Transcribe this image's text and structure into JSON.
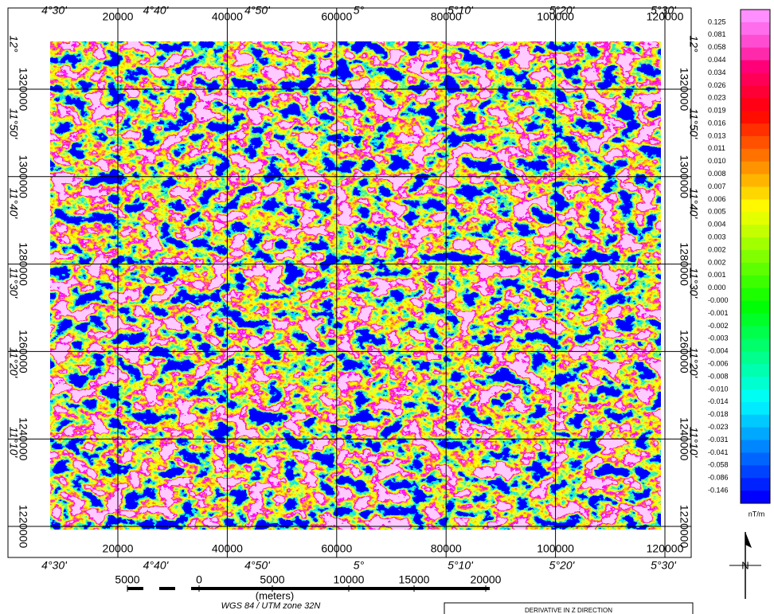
{
  "map": {
    "eastings": [
      "20000",
      "40000",
      "60000",
      "80000",
      "100000",
      "120000"
    ],
    "longitudes": [
      "4°30'",
      "4°40'",
      "4°50'",
      "5°",
      "5°10'",
      "5°20'",
      "5°30'"
    ],
    "northings": [
      "1320000",
      "1300000",
      "1280000",
      "1260000",
      "1240000",
      "1220000"
    ],
    "latitudes": [
      "12°",
      "11°50'",
      "11°40'",
      "11°30'",
      "11°20'",
      "11°10'"
    ]
  },
  "legend": {
    "labels": [
      "0.125",
      "0.081",
      "0.058",
      "0.044",
      "0.034",
      "0.026",
      "0.023",
      "0.019",
      "0.016",
      "0.013",
      "0.011",
      "0.010",
      "0.008",
      "0.007",
      "0.006",
      "0.005",
      "0.004",
      "0.003",
      "0.002",
      "0.002",
      "0.001",
      "0.000",
      "-0.000",
      "-0.001",
      "-0.002",
      "-0.003",
      "-0.004",
      "-0.006",
      "-0.008",
      "-0.010",
      "-0.014",
      "-0.018",
      "-0.023",
      "-0.031",
      "-0.041",
      "-0.058",
      "-0.086",
      "-0.146"
    ],
    "unit": "nT/m"
  },
  "scale_bar": {
    "labels": [
      "5000",
      "0",
      "5000",
      "10000",
      "15000",
      "20000"
    ],
    "unit": "(meters)",
    "projection": "WGS 84 / UTM zone 32N"
  },
  "title_box": "DERIVATIVE IN Z DIRECTION",
  "north_arrow": "N"
}
